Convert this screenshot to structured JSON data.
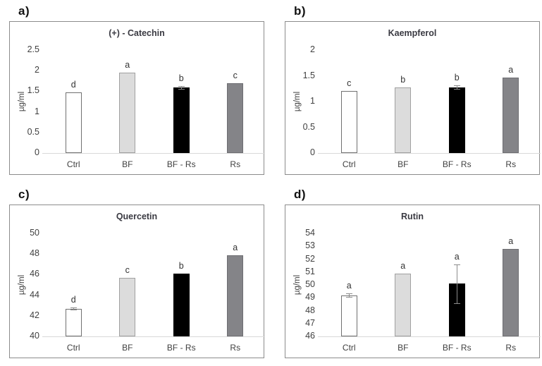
{
  "figure": {
    "background": "#ffffff",
    "panel_border_color": "#8c8c8c",
    "title_color": "#3a3a42",
    "axis_text_color": "#404040",
    "baseline_color": "#d9d9d9",
    "error_bar_color": "#8c8c8c"
  },
  "bar_styles": [
    {
      "label": "Ctrl",
      "fill": "#ffffff",
      "border": "#707070"
    },
    {
      "label": "BF",
      "fill": "#dcdcdc",
      "border": "#a0a0a0"
    },
    {
      "label": "BF - Rs",
      "fill": "#000000",
      "border": "#000000"
    },
    {
      "label": "Rs",
      "fill": "#848488",
      "border": "#6e6e72"
    }
  ],
  "chart_data": [
    {
      "panel_label": "a)",
      "type": "bar",
      "title": "(+) - Catechin",
      "ylabel": "µg/ml",
      "categories": [
        "Ctrl",
        "BF",
        "BF - Rs",
        "Rs"
      ],
      "values": [
        1.48,
        1.95,
        1.59,
        1.7
      ],
      "errors": [
        0,
        0,
        0.03,
        0
      ],
      "sig_letters": [
        "d",
        "a",
        "b",
        "c"
      ],
      "ylim": [
        0,
        2.5
      ],
      "yticks": [
        0,
        0.5,
        1,
        1.5,
        2,
        2.5
      ],
      "ytick_labels": [
        "0",
        "0.5",
        "1",
        "1.5",
        "2",
        "2.5"
      ],
      "grid": false,
      "legend": "none"
    },
    {
      "panel_label": "b)",
      "type": "bar",
      "title": "Kaempferol",
      "ylabel": "µg/ml",
      "categories": [
        "Ctrl",
        "BF",
        "BF - Rs",
        "Rs"
      ],
      "values": [
        1.21,
        1.28,
        1.28,
        1.47
      ],
      "errors": [
        0,
        0,
        0.03,
        0
      ],
      "sig_letters": [
        "c",
        "b",
        "b",
        "a"
      ],
      "ylim": [
        0,
        2
      ],
      "yticks": [
        0,
        0.5,
        1,
        1.5,
        2
      ],
      "ytick_labels": [
        "0",
        "0.5",
        "1",
        "1.5",
        "2"
      ],
      "grid": false,
      "legend": "none"
    },
    {
      "panel_label": "c)",
      "type": "bar",
      "title": "Quercetin",
      "ylabel": "µg/ml",
      "categories": [
        "Ctrl",
        "BF",
        "BF - Rs",
        "Rs"
      ],
      "values": [
        42.7,
        45.7,
        46.1,
        47.9
      ],
      "errors": [
        0.08,
        0,
        0,
        0
      ],
      "sig_letters": [
        "d",
        "c",
        "b",
        "a"
      ],
      "ylim": [
        40,
        50
      ],
      "yticks": [
        40,
        42,
        44,
        46,
        48,
        50
      ],
      "ytick_labels": [
        "40",
        "42",
        "44",
        "46",
        "48",
        "50"
      ],
      "grid": false,
      "legend": "none"
    },
    {
      "panel_label": "d)",
      "type": "bar",
      "title": "Rutin",
      "ylabel": "µg/ml",
      "categories": [
        "Ctrl",
        "BF",
        "BF - Rs",
        "Rs"
      ],
      "values": [
        49.2,
        50.9,
        50.1,
        52.8
      ],
      "errors": [
        0.12,
        0,
        1.5,
        0
      ],
      "sig_letters": [
        "a",
        "a",
        "a",
        "a"
      ],
      "ylim": [
        46,
        54
      ],
      "yticks": [
        46,
        47,
        48,
        49,
        50,
        51,
        52,
        53,
        54
      ],
      "ytick_labels": [
        "46",
        "47",
        "48",
        "49",
        "50",
        "51",
        "52",
        "53",
        "54"
      ],
      "grid": false,
      "legend": "none"
    }
  ]
}
